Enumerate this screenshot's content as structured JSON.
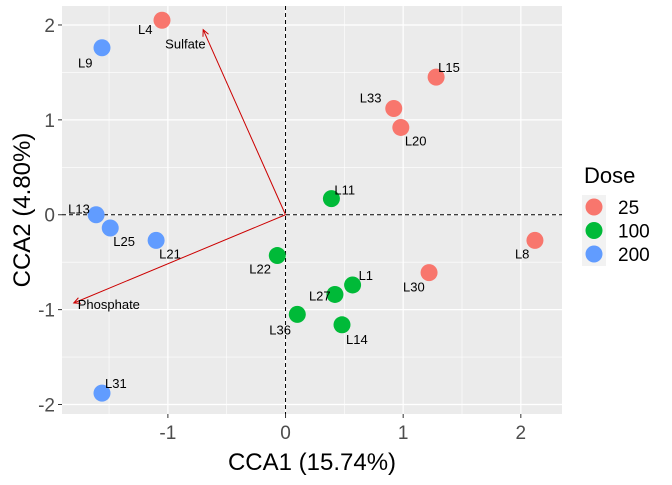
{
  "chart_data": {
    "type": "scatter",
    "xlabel": "CCA1 (15.74%)",
    "ylabel": "CCA2 (4.80%)",
    "xlim": [
      -1.9,
      2.35
    ],
    "ylim": [
      -2.1,
      2.2
    ],
    "x_ticks": [
      -1,
      0,
      1,
      2
    ],
    "x_tick_labels": [
      "-1",
      "0",
      "1",
      "2"
    ],
    "y_ticks": [
      -2,
      -1,
      0,
      1,
      2
    ],
    "y_tick_labels": [
      "-2",
      "-1",
      "0",
      "1",
      "2"
    ],
    "grid": true,
    "reference_lines": {
      "x": 0,
      "y": 0,
      "style": "dashed"
    },
    "legend": {
      "title": "Dose",
      "placement": "right",
      "entries": [
        {
          "label": "25",
          "color": "#F8766D"
        },
        {
          "label": "100",
          "color": "#00BA38"
        },
        {
          "label": "200",
          "color": "#619CFF"
        }
      ]
    },
    "series": [
      {
        "name": "25",
        "color": "#F8766D",
        "points": [
          {
            "label": "L4",
            "x": -1.05,
            "y": 2.05
          },
          {
            "label": "L15",
            "x": 1.28,
            "y": 1.45
          },
          {
            "label": "L33",
            "x": 0.92,
            "y": 1.12
          },
          {
            "label": "L20",
            "x": 0.98,
            "y": 0.92
          },
          {
            "label": "L8",
            "x": 2.12,
            "y": -0.27
          },
          {
            "label": "L30",
            "x": 1.22,
            "y": -0.61
          }
        ]
      },
      {
        "name": "100",
        "color": "#00BA38",
        "points": [
          {
            "label": "L11",
            "x": 0.39,
            "y": 0.17
          },
          {
            "label": "L22",
            "x": -0.07,
            "y": -0.43
          },
          {
            "label": "L1",
            "x": 0.57,
            "y": -0.74
          },
          {
            "label": "L27",
            "x": 0.42,
            "y": -0.84
          },
          {
            "label": "L36",
            "x": 0.1,
            "y": -1.05
          },
          {
            "label": "L14",
            "x": 0.48,
            "y": -1.16
          }
        ]
      },
      {
        "name": "200",
        "color": "#619CFF",
        "points": [
          {
            "label": "L9",
            "x": -1.56,
            "y": 1.76
          },
          {
            "label": "L13",
            "x": -1.61,
            "y": 0.0
          },
          {
            "label": "L25",
            "x": -1.49,
            "y": -0.14
          },
          {
            "label": "L21",
            "x": -1.1,
            "y": -0.27
          },
          {
            "label": "L31",
            "x": -1.56,
            "y": -1.88
          }
        ]
      }
    ],
    "vectors": [
      {
        "label": "Sulfate",
        "x": -0.7,
        "y": 1.95,
        "color": "#CC0000"
      },
      {
        "label": "Phosphate",
        "x": -1.8,
        "y": -0.93,
        "color": "#CC0000"
      }
    ]
  }
}
